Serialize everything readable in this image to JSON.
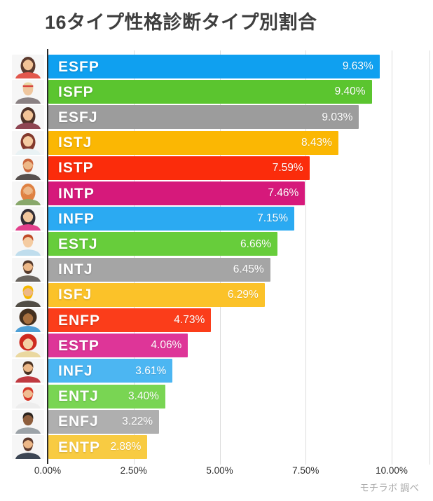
{
  "title": "16タイプ性格診断タイプ別割合",
  "source_note": "モチラボ 調べ",
  "chart_data": {
    "type": "bar",
    "orientation": "horizontal",
    "title": "16タイプ性格診断タイプ別割合",
    "categories": [
      "ESFP",
      "ISFP",
      "ESFJ",
      "ISTJ",
      "ISTP",
      "INTP",
      "INFP",
      "ESTJ",
      "INTJ",
      "ISFJ",
      "ENFP",
      "ESTP",
      "INFJ",
      "ENTJ",
      "ENFJ",
      "ENTP"
    ],
    "values": [
      9.63,
      9.4,
      9.03,
      8.43,
      7.59,
      7.46,
      7.15,
      6.66,
      6.45,
      6.29,
      4.73,
      4.06,
      3.61,
      3.4,
      3.22,
      2.88
    ],
    "value_labels": [
      "9.63%",
      "9.40%",
      "9.03%",
      "8.43%",
      "7.59%",
      "7.46%",
      "7.15%",
      "6.66%",
      "6.45%",
      "6.29%",
      "4.73%",
      "4.06%",
      "3.61%",
      "3.40%",
      "3.22%",
      "2.88%"
    ],
    "bar_colors": [
      "#0FA0F0",
      "#5BC52F",
      "#9C9C9C",
      "#FBB703",
      "#FB2C0B",
      "#D6197B",
      "#2BAAF2",
      "#67CD3B",
      "#A5A5A5",
      "#FBC229",
      "#FB3D1A",
      "#DE3598",
      "#4CB6F2",
      "#79D553",
      "#AFAFAF",
      "#F8CB42"
    ],
    "xlabel": "",
    "ylabel": "",
    "x_tick_labels": [
      "0.00%",
      "2.50%",
      "5.00%",
      "7.50%",
      "10.00%"
    ],
    "x_tick_values": [
      0,
      2.5,
      5,
      7.5,
      10
    ],
    "xlim": [
      0,
      11.12
    ],
    "grid": true,
    "legend": false,
    "value_label_position": "inside-right",
    "category_label_position": "inside-left"
  },
  "avatars": [
    {
      "type": "ESFP",
      "skin": "#F2C397",
      "hair": "#5C3A2E",
      "shirt": "#E2574C",
      "beard": false,
      "style": "long"
    },
    {
      "type": "ISFP",
      "skin": "#EFC69E",
      "hair": "#E8D8A6",
      "shirt": "#8A8183",
      "beard": false,
      "style": "short",
      "band": "#D8453E"
    },
    {
      "type": "ESFJ",
      "skin": "#F2C397",
      "hair": "#4E332A",
      "shirt": "#8E4653",
      "beard": false,
      "style": "long"
    },
    {
      "type": "ISTJ",
      "skin": "#F4CBA1",
      "hair": "#83392C",
      "shirt": "#E9F2F4",
      "beard": false,
      "style": "long"
    },
    {
      "type": "ISTP",
      "skin": "#EDB888",
      "hair": "#C9653C",
      "shirt": "#57504E",
      "beard": true,
      "style": "short"
    },
    {
      "type": "INTP",
      "skin": "#EDB888",
      "hair": "#DF8142",
      "shirt": "#89A86B",
      "beard": true,
      "style": "long"
    },
    {
      "type": "INFP",
      "skin": "#F2C79D",
      "hair": "#332E35",
      "shirt": "#E2408C",
      "beard": false,
      "style": "long"
    },
    {
      "type": "ESTJ",
      "skin": "#F4CBA1",
      "hair": "#BF4A26",
      "shirt": "#BFDDED",
      "beard": false,
      "style": "short"
    },
    {
      "type": "INTJ",
      "skin": "#EDB888",
      "hair": "#54392B",
      "shirt": "#6A6560",
      "beard": true,
      "style": "short"
    },
    {
      "type": "ISFJ",
      "skin": "#EDB888",
      "hair": "#F4B800",
      "shirt": "#524E46",
      "beard": true,
      "style": "short"
    },
    {
      "type": "ENFP",
      "skin": "#A8703F",
      "hair": "#44301F",
      "shirt": "#4E9FD6",
      "beard": false,
      "style": "big"
    },
    {
      "type": "ESTP",
      "skin": "#F4D0A4",
      "hair": "#CE2A1F",
      "shirt": "#EAD8A0",
      "beard": false,
      "style": "big"
    },
    {
      "type": "INFJ",
      "skin": "#EDB888",
      "hair": "#4A3121",
      "shirt": "#C03A41",
      "beard": true,
      "style": "short"
    },
    {
      "type": "ENTJ",
      "skin": "#F0BD92",
      "hair": "#D5372A",
      "shirt": "#EDEDED",
      "beard": true,
      "style": "short"
    },
    {
      "type": "ENFJ",
      "skin": "#8E5E3D",
      "hair": "#2A231E",
      "shirt": "#9CA3A8",
      "beard": false,
      "style": "short"
    },
    {
      "type": "ENTP",
      "skin": "#EDB888",
      "hair": "#5C3A2E",
      "shirt": "#3C4654",
      "beard": true,
      "style": "short"
    }
  ]
}
